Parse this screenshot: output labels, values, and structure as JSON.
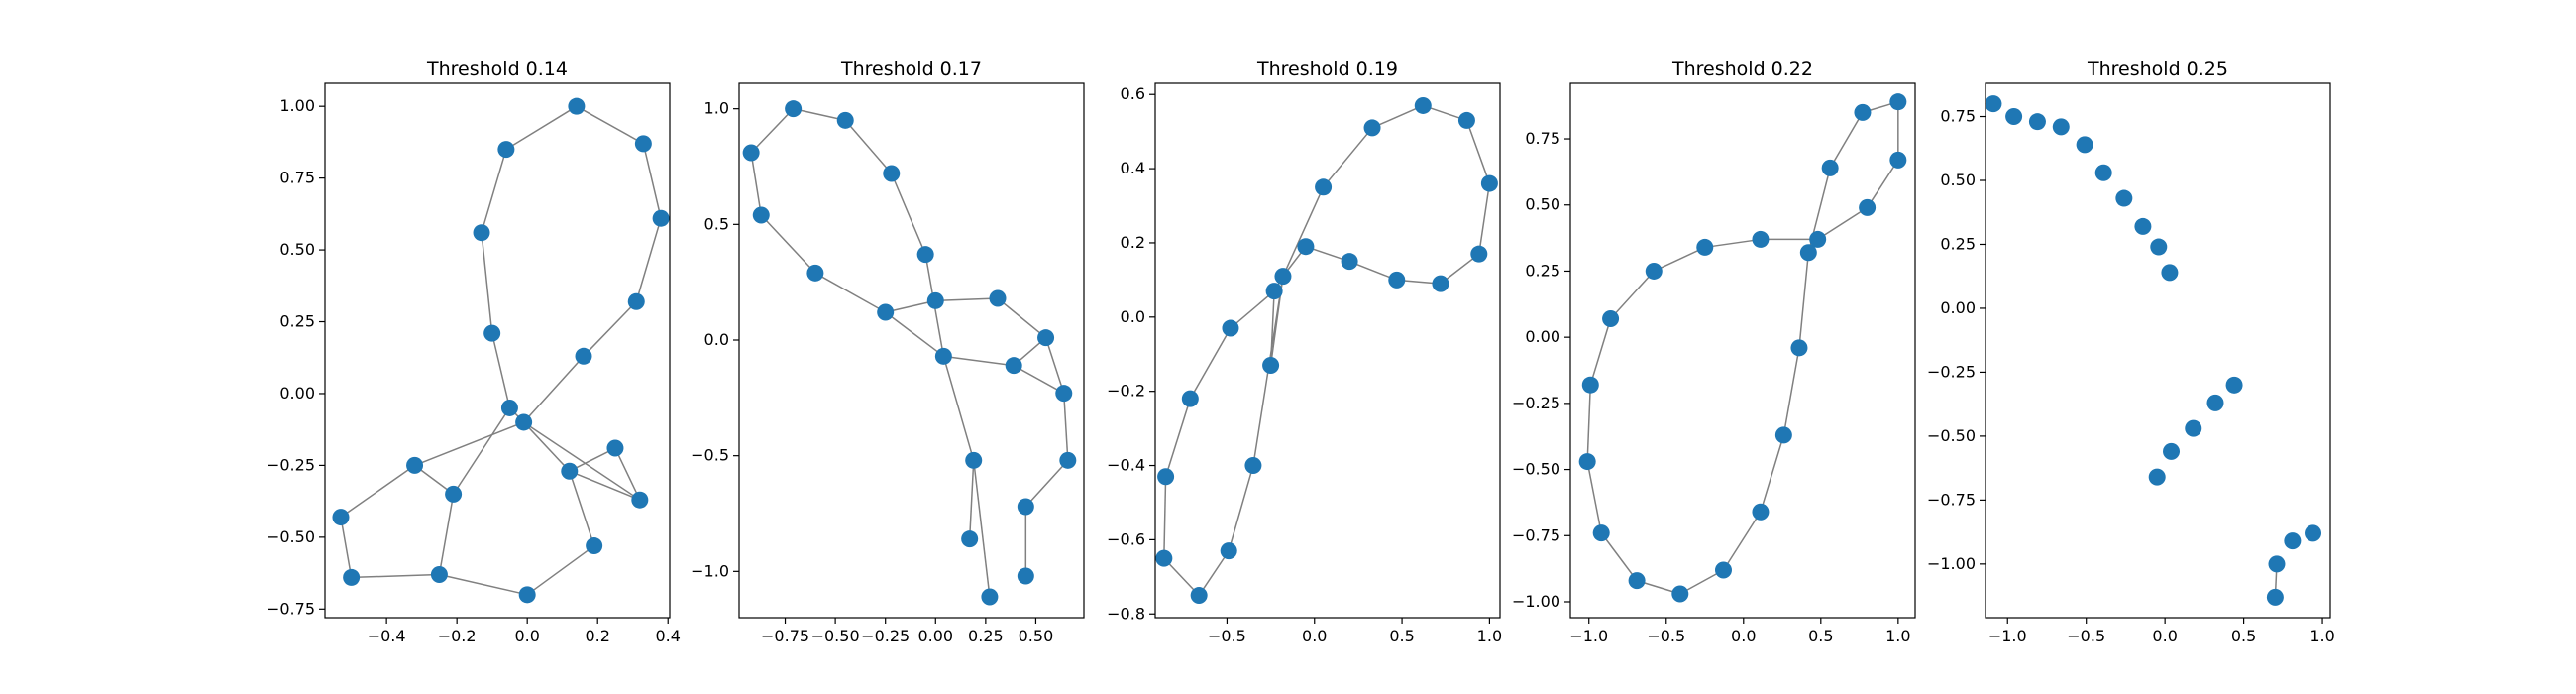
{
  "figure": {
    "background": "#ffffff",
    "node_color": "#1f77b4",
    "edge_color": "#808080"
  },
  "chart_data": [
    {
      "type": "scatter",
      "title": "Threshold 0.14",
      "xlabel": "",
      "ylabel": "",
      "grid": false,
      "xlim": [
        -0.575,
        0.405
      ],
      "ylim": [
        -0.78,
        1.08
      ],
      "xticks": [
        -0.4,
        -0.2,
        0.0,
        0.2,
        0.4
      ],
      "xtick_labels": [
        "−0.4",
        "−0.2",
        "0.0",
        "0.2",
        "0.4"
      ],
      "yticks": [
        -0.75,
        -0.5,
        -0.25,
        0.0,
        0.25,
        0.5,
        0.75,
        1.0
      ],
      "ytick_labels": [
        "−0.75",
        "−0.50",
        "−0.25",
        "0.00",
        "0.25",
        "0.50",
        "0.75",
        "1.00"
      ],
      "nodes": [
        [
          0.14,
          1.0
        ],
        [
          0.33,
          0.87
        ],
        [
          0.38,
          0.61
        ],
        [
          0.31,
          0.32
        ],
        [
          0.16,
          0.13
        ],
        [
          -0.06,
          0.85
        ],
        [
          -0.13,
          0.56
        ],
        [
          -0.1,
          0.21
        ],
        [
          -0.05,
          -0.05
        ],
        [
          -0.01,
          -0.1
        ],
        [
          -0.32,
          -0.25
        ],
        [
          -0.21,
          -0.35
        ],
        [
          -0.53,
          -0.43
        ],
        [
          -0.5,
          -0.64
        ],
        [
          -0.25,
          -0.63
        ],
        [
          0.0,
          -0.7
        ],
        [
          0.19,
          -0.53
        ],
        [
          0.12,
          -0.27
        ],
        [
          0.25,
          -0.19
        ],
        [
          0.32,
          -0.37
        ]
      ],
      "edges": [
        [
          0,
          1
        ],
        [
          1,
          2
        ],
        [
          2,
          3
        ],
        [
          3,
          4
        ],
        [
          4,
          9
        ],
        [
          0,
          5
        ],
        [
          5,
          6
        ],
        [
          6,
          7
        ],
        [
          7,
          8
        ],
        [
          8,
          9
        ],
        [
          9,
          10
        ],
        [
          10,
          12
        ],
        [
          12,
          13
        ],
        [
          13,
          14
        ],
        [
          14,
          11
        ],
        [
          11,
          8
        ],
        [
          11,
          10
        ],
        [
          14,
          15
        ],
        [
          15,
          16
        ],
        [
          16,
          17
        ],
        [
          17,
          9
        ],
        [
          17,
          18
        ],
        [
          18,
          19
        ],
        [
          19,
          17
        ],
        [
          9,
          19
        ]
      ]
    },
    {
      "type": "scatter",
      "title": "Threshold 0.17",
      "xlabel": "",
      "ylabel": "",
      "grid": false,
      "xlim": [
        -0.98,
        0.74
      ],
      "ylim": [
        -1.2,
        1.11
      ],
      "xticks": [
        -0.75,
        -0.5,
        -0.25,
        0.0,
        0.25,
        0.5
      ],
      "xtick_labels": [
        "−0.75",
        "−0.50",
        "−0.25",
        "0.00",
        "0.25",
        "0.50"
      ],
      "yticks": [
        -1.0,
        -0.5,
        0.0,
        0.5,
        1.0
      ],
      "ytick_labels": [
        "−1.0",
        "−0.5",
        "0.0",
        "0.5",
        "1.0"
      ],
      "nodes": [
        [
          -0.71,
          1.0
        ],
        [
          -0.45,
          0.95
        ],
        [
          -0.22,
          0.72
        ],
        [
          -0.05,
          0.37
        ],
        [
          0.0,
          0.17
        ],
        [
          0.31,
          0.18
        ],
        [
          0.55,
          0.01
        ],
        [
          0.64,
          -0.23
        ],
        [
          0.66,
          -0.52
        ],
        [
          0.45,
          -0.72
        ],
        [
          0.45,
          -1.02
        ],
        [
          0.27,
          -1.11
        ],
        [
          0.17,
          -0.86
        ],
        [
          0.19,
          -0.52
        ],
        [
          0.04,
          -0.07
        ],
        [
          0.39,
          -0.11
        ],
        [
          -0.92,
          0.81
        ],
        [
          -0.87,
          0.54
        ],
        [
          -0.6,
          0.29
        ],
        [
          -0.25,
          0.12
        ]
      ],
      "edges": [
        [
          16,
          0
        ],
        [
          0,
          1
        ],
        [
          1,
          2
        ],
        [
          2,
          3
        ],
        [
          3,
          14
        ],
        [
          16,
          17
        ],
        [
          17,
          18
        ],
        [
          18,
          19
        ],
        [
          19,
          14
        ],
        [
          19,
          4
        ],
        [
          4,
          5
        ],
        [
          5,
          6
        ],
        [
          6,
          15
        ],
        [
          15,
          14
        ],
        [
          15,
          7
        ],
        [
          6,
          7
        ],
        [
          7,
          8
        ],
        [
          8,
          9
        ],
        [
          9,
          10
        ],
        [
          14,
          13
        ],
        [
          13,
          12
        ],
        [
          13,
          11
        ]
      ]
    },
    {
      "type": "scatter",
      "title": "Threshold 0.19",
      "xlabel": "",
      "ylabel": "",
      "grid": false,
      "xlim": [
        -0.91,
        1.06
      ],
      "ylim": [
        -0.81,
        0.63
      ],
      "xticks": [
        -0.5,
        0.0,
        0.5,
        1.0
      ],
      "xtick_labels": [
        "−0.5",
        "0.0",
        "0.5",
        "1.0"
      ],
      "yticks": [
        -0.8,
        -0.6,
        -0.4,
        -0.2,
        0.0,
        0.2,
        0.4,
        0.6
      ],
      "ytick_labels": [
        "−0.8",
        "−0.6",
        "−0.4",
        "−0.2",
        "0.0",
        "0.2",
        "0.4",
        "0.6"
      ],
      "nodes": [
        [
          0.62,
          0.57
        ],
        [
          0.87,
          0.53
        ],
        [
          1.0,
          0.36
        ],
        [
          0.94,
          0.17
        ],
        [
          0.72,
          0.09
        ],
        [
          0.47,
          0.1
        ],
        [
          0.2,
          0.15
        ],
        [
          -0.05,
          0.19
        ],
        [
          -0.18,
          0.11
        ],
        [
          -0.23,
          0.07
        ],
        [
          0.33,
          0.51
        ],
        [
          0.05,
          0.35
        ],
        [
          -0.48,
          -0.03
        ],
        [
          -0.71,
          -0.22
        ],
        [
          -0.85,
          -0.43
        ],
        [
          -0.86,
          -0.65
        ],
        [
          -0.66,
          -0.75
        ],
        [
          -0.49,
          -0.63
        ],
        [
          -0.35,
          -0.4
        ],
        [
          -0.25,
          -0.13
        ]
      ],
      "edges": [
        [
          10,
          0
        ],
        [
          0,
          1
        ],
        [
          1,
          2
        ],
        [
          2,
          3
        ],
        [
          3,
          4
        ],
        [
          4,
          5
        ],
        [
          5,
          6
        ],
        [
          6,
          7
        ],
        [
          7,
          8
        ],
        [
          8,
          9
        ],
        [
          10,
          11
        ],
        [
          11,
          8
        ],
        [
          9,
          12
        ],
        [
          12,
          13
        ],
        [
          13,
          14
        ],
        [
          14,
          15
        ],
        [
          15,
          16
        ],
        [
          16,
          17
        ],
        [
          17,
          18
        ],
        [
          18,
          8
        ],
        [
          19,
          8
        ],
        [
          19,
          9
        ]
      ]
    },
    {
      "type": "scatter",
      "title": "Threshold 0.22",
      "xlabel": "",
      "ylabel": "",
      "grid": false,
      "xlim": [
        -1.12,
        1.11
      ],
      "ylim": [
        -1.06,
        0.96
      ],
      "xticks": [
        -1.0,
        -0.5,
        0.0,
        0.5,
        1.0
      ],
      "xtick_labels": [
        "−1.0",
        "−0.5",
        "0.0",
        "0.5",
        "1.0"
      ],
      "yticks": [
        -1.0,
        -0.75,
        -0.5,
        -0.25,
        0.0,
        0.25,
        0.5,
        0.75
      ],
      "ytick_labels": [
        "−1.00",
        "−0.75",
        "−0.50",
        "−0.25",
        "0.00",
        "0.25",
        "0.50",
        "0.75"
      ],
      "nodes": [
        [
          0.77,
          0.85
        ],
        [
          1.0,
          0.89
        ],
        [
          1.0,
          0.67
        ],
        [
          0.8,
          0.49
        ],
        [
          0.48,
          0.37
        ],
        [
          0.11,
          0.37
        ],
        [
          -0.25,
          0.34
        ],
        [
          -0.58,
          0.25
        ],
        [
          -0.86,
          0.07
        ],
        [
          -0.99,
          -0.18
        ],
        [
          -1.01,
          -0.47
        ],
        [
          -0.92,
          -0.74
        ],
        [
          -0.69,
          -0.92
        ],
        [
          -0.41,
          -0.97
        ],
        [
          -0.13,
          -0.88
        ],
        [
          0.11,
          -0.66
        ],
        [
          0.26,
          -0.37
        ],
        [
          0.36,
          -0.04
        ],
        [
          0.42,
          0.32
        ],
        [
          0.56,
          0.64
        ]
      ],
      "edges": [
        [
          19,
          0
        ],
        [
          0,
          1
        ],
        [
          1,
          2
        ],
        [
          2,
          3
        ],
        [
          3,
          4
        ],
        [
          4,
          5
        ],
        [
          5,
          6
        ],
        [
          6,
          7
        ],
        [
          7,
          8
        ],
        [
          8,
          9
        ],
        [
          9,
          10
        ],
        [
          10,
          11
        ],
        [
          11,
          12
        ],
        [
          12,
          13
        ],
        [
          13,
          14
        ],
        [
          14,
          15
        ],
        [
          15,
          16
        ],
        [
          16,
          17
        ],
        [
          17,
          18
        ],
        [
          18,
          19
        ],
        [
          18,
          4
        ]
      ]
    },
    {
      "type": "scatter",
      "title": "Threshold 0.25",
      "xlabel": "",
      "ylabel": "",
      "grid": false,
      "xlim": [
        -1.14,
        1.05
      ],
      "ylim": [
        -1.21,
        0.88
      ],
      "xticks": [
        -1.0,
        -0.5,
        0.0,
        0.5,
        1.0
      ],
      "xtick_labels": [
        "−1.0",
        "−0.5",
        "0.0",
        "0.5",
        "1.0"
      ],
      "yticks": [
        -1.0,
        -0.75,
        -0.5,
        -0.25,
        0.0,
        0.25,
        0.5,
        0.75
      ],
      "ytick_labels": [
        "−1.00",
        "−0.75",
        "−0.50",
        "−0.25",
        "0.00",
        "0.25",
        "0.50",
        "0.75"
      ],
      "nodes": [
        [
          -1.09,
          0.8
        ],
        [
          -0.96,
          0.75
        ],
        [
          -0.81,
          0.73
        ],
        [
          -0.66,
          0.71
        ],
        [
          -0.51,
          0.64
        ],
        [
          -0.39,
          0.53
        ],
        [
          -0.26,
          0.43
        ],
        [
          -0.14,
          0.32
        ],
        [
          -0.04,
          0.24
        ],
        [
          0.03,
          0.14
        ],
        [
          0.44,
          -0.3
        ],
        [
          0.32,
          -0.37
        ],
        [
          0.18,
          -0.47
        ],
        [
          0.04,
          -0.56
        ],
        [
          -0.05,
          -0.66
        ],
        [
          0.7,
          -1.13
        ],
        [
          0.71,
          -1.0
        ],
        [
          0.81,
          -0.91
        ],
        [
          0.94,
          -0.88
        ]
      ],
      "edges": [
        [
          15,
          16
        ]
      ]
    }
  ]
}
